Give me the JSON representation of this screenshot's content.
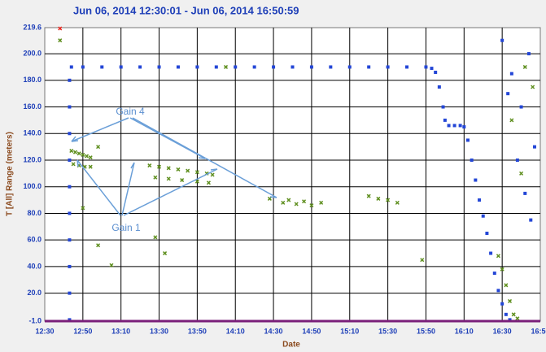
{
  "chart_data": {
    "type": "scatter",
    "title": "Jun 06, 2014 12:30:01 - Jun 06, 2014 16:50:59",
    "xlabel": "Date",
    "ylabel": "T [All] Range (meters)",
    "xlim": [
      "12:30",
      "16:50"
    ],
    "xticks": [
      "12:30",
      "12:50",
      "13:10",
      "13:30",
      "13:50",
      "14:10",
      "14:30",
      "14:50",
      "15:10",
      "15:30",
      "15:50",
      "16:10",
      "16:30",
      "16:50"
    ],
    "ylim": [
      -1,
      219.6
    ],
    "yticks": [
      {
        "value": -1,
        "label": "-1.0"
      },
      {
        "value": 20,
        "label": "20.0"
      },
      {
        "value": 40,
        "label": "40.0"
      },
      {
        "value": 60,
        "label": "60.0"
      },
      {
        "value": 80,
        "label": "80.0"
      },
      {
        "value": 100,
        "label": "100.0"
      },
      {
        "value": 120,
        "label": "120.0"
      },
      {
        "value": 140,
        "label": "140.0"
      },
      {
        "value": 160,
        "label": "160.0"
      },
      {
        "value": 180,
        "label": "180.0"
      },
      {
        "value": 200,
        "label": "200.0"
      },
      219.6
    ],
    "grid": true,
    "annotations": [
      {
        "text": "Gain 4"
      },
      {
        "text": "Gain 1"
      }
    ],
    "series": [
      {
        "color": "#2346d6",
        "marker": "square",
        "x": [
          "12:43",
          "12:43",
          "12:43",
          "12:43",
          "12:43",
          "12:43",
          "12:43",
          "12:43",
          "12:43",
          "12:43",
          "12:44",
          "12:50",
          "13:00",
          "13:10",
          "13:20",
          "13:30",
          "13:40",
          "13:50",
          "14:00",
          "14:10",
          "14:20",
          "14:30",
          "14:40",
          "14:50",
          "15:00",
          "15:10",
          "15:20",
          "15:30",
          "15:40",
          "15:50",
          "15:53",
          "15:55",
          "15:57",
          "15:59",
          "16:00",
          "16:02",
          "16:05",
          "16:08",
          "16:10",
          "16:12",
          "16:14",
          "16:16",
          "16:18",
          "16:20",
          "16:22",
          "16:24",
          "16:26",
          "16:28",
          "16:30",
          "16:32",
          "16:34",
          "16:30",
          "16:35",
          "16:40",
          "16:44",
          "16:38",
          "16:42",
          "16:47",
          "16:33",
          "16:45"
        ],
        "values": [
          0,
          20,
          40,
          60,
          80,
          100,
          120,
          140,
          160,
          180,
          190,
          190,
          190,
          190,
          190,
          190,
          190,
          190,
          190,
          190,
          190,
          190,
          190,
          190,
          190,
          190,
          190,
          190,
          190,
          190,
          189,
          186,
          175,
          160,
          150,
          146,
          146,
          146,
          145,
          135,
          120,
          105,
          90,
          78,
          65,
          50,
          35,
          22,
          12,
          4,
          0,
          210,
          185,
          160,
          200,
          120,
          95,
          130,
          170,
          75
        ]
      },
      {
        "color": "#5f8f1f",
        "marker": "cross",
        "x": [
          "12:44",
          "12:46",
          "12:48",
          "12:50",
          "12:52",
          "12:54",
          "12:45",
          "12:48",
          "12:51",
          "12:54",
          "13:25",
          "13:30",
          "13:35",
          "13:40",
          "13:45",
          "13:50",
          "13:55",
          "13:58",
          "13:28",
          "13:35",
          "13:42",
          "13:50",
          "13:56",
          "14:35",
          "14:38",
          "14:42",
          "14:46",
          "14:50",
          "14:55",
          "15:20",
          "15:25",
          "15:30",
          "15:35",
          "12:50",
          "12:58",
          "13:05",
          "13:28",
          "13:33",
          "14:28",
          "15:48",
          "12:58",
          "16:28",
          "16:30",
          "16:32",
          "16:34",
          "16:36",
          "16:38",
          "16:35",
          "16:42",
          "16:46",
          "16:40",
          "12:38",
          "14:05"
        ],
        "values": [
          127,
          126,
          125,
          124,
          123,
          122,
          117,
          116,
          115,
          115,
          116,
          115,
          114,
          113,
          112,
          111,
          110,
          109,
          107,
          106,
          105,
          104,
          103,
          88,
          90,
          87,
          89,
          86,
          88,
          93,
          91,
          90,
          88,
          84,
          56,
          41,
          62,
          50,
          91,
          45,
          130,
          48,
          38,
          26,
          14,
          4,
          1,
          150,
          190,
          175,
          110,
          210,
          190
        ]
      },
      {
        "color": "#e8221b",
        "marker": "cross",
        "x": [
          "12:38"
        ],
        "values": [
          219
        ]
      }
    ]
  }
}
